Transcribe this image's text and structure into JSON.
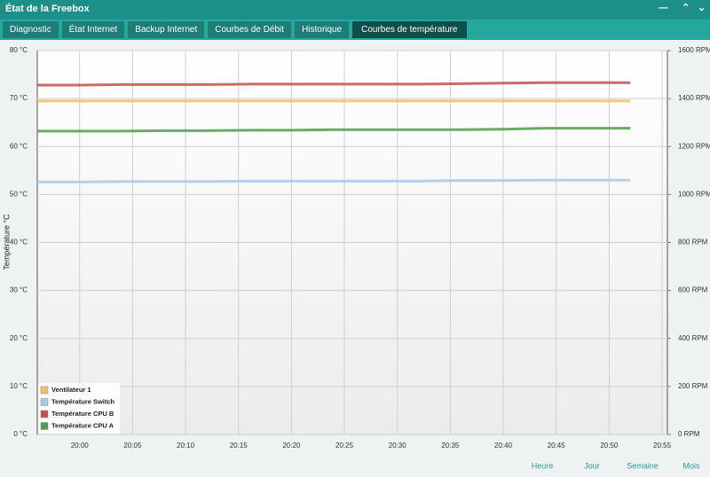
{
  "window": {
    "title": "État de la Freebox"
  },
  "tabs": [
    "Diagnostic",
    "État Internet",
    "Backup Internet",
    "Courbes de Débit",
    "Historique",
    "Courbes de température"
  ],
  "active_tab": 5,
  "chart_data": {
    "type": "line",
    "y_label": "Température °C",
    "x": [
      1196,
      1200,
      1204,
      1208,
      1212,
      1216,
      1220,
      1224,
      1228,
      1232,
      1236,
      1240,
      1244,
      1248,
      1252
    ],
    "xlim": [
      1196,
      1255.5
    ],
    "xticks": [
      {
        "value": 1200,
        "label": "20:00"
      },
      {
        "value": 1205,
        "label": "20:05"
      },
      {
        "value": 1210,
        "label": "20:10"
      },
      {
        "value": 1215,
        "label": "20:15"
      },
      {
        "value": 1220,
        "label": "20:20"
      },
      {
        "value": 1225,
        "label": "20:25"
      },
      {
        "value": 1230,
        "label": "20:30"
      },
      {
        "value": 1235,
        "label": "20:35"
      },
      {
        "value": 1240,
        "label": "20:40"
      },
      {
        "value": 1245,
        "label": "20:45"
      },
      {
        "value": 1250,
        "label": "20:50"
      },
      {
        "value": 1255,
        "label": "20:55"
      }
    ],
    "ylim": [
      0,
      80
    ],
    "yticks": [
      {
        "value": 0,
        "label": "0 °C"
      },
      {
        "value": 10,
        "label": "10 °C"
      },
      {
        "value": 20,
        "label": "20 °C"
      },
      {
        "value": 30,
        "label": "30 °C"
      },
      {
        "value": 40,
        "label": "40 °C"
      },
      {
        "value": 50,
        "label": "50 °C"
      },
      {
        "value": 60,
        "label": "60 °C"
      },
      {
        "value": 70,
        "label": "70 °C"
      },
      {
        "value": 80,
        "label": "80 °C"
      }
    ],
    "y2lim": [
      0,
      1600
    ],
    "y2ticks": [
      {
        "value": 0,
        "label": "0 RPM"
      },
      {
        "value": 200,
        "label": "200 RPM"
      },
      {
        "value": 400,
        "label": "400 RPM"
      },
      {
        "value": 600,
        "label": "600 RPM"
      },
      {
        "value": 800,
        "label": "800 RPM"
      },
      {
        "value": 1000,
        "label": "1000 RPM"
      },
      {
        "value": 1200,
        "label": "1200 RPM"
      },
      {
        "value": 1400,
        "label": "1400 RPM"
      },
      {
        "value": 1600,
        "label": "1600 RPM"
      }
    ],
    "grid": true,
    "legend": "bottom-left",
    "series": [
      {
        "name": "Ventilateur 1",
        "color": "#f0c064",
        "axis": "y2",
        "values": [
          1390,
          1390,
          1390,
          1390,
          1390,
          1390,
          1390,
          1390,
          1390,
          1390,
          1390,
          1390,
          1390,
          1390,
          1390
        ]
      },
      {
        "name": "Température Switch",
        "color": "#aac9e6",
        "values": [
          52.6,
          52.6,
          52.7,
          52.7,
          52.7,
          52.8,
          52.8,
          52.8,
          52.8,
          52.8,
          52.9,
          52.9,
          53.0,
          53.0,
          53.0
        ]
      },
      {
        "name": "Température CPU B",
        "color": "#c4504c",
        "values": [
          72.8,
          72.8,
          72.9,
          72.9,
          72.9,
          73.0,
          73.0,
          73.0,
          73.0,
          73.0,
          73.1,
          73.2,
          73.3,
          73.3,
          73.3
        ]
      },
      {
        "name": "Température CPU A",
        "color": "#4f9c4c",
        "values": [
          63.2,
          63.2,
          63.2,
          63.3,
          63.3,
          63.4,
          63.4,
          63.5,
          63.5,
          63.5,
          63.5,
          63.6,
          63.8,
          63.8,
          63.8
        ]
      }
    ]
  },
  "periods": [
    "Heure",
    "Jour",
    "Semaine",
    "Mois"
  ]
}
